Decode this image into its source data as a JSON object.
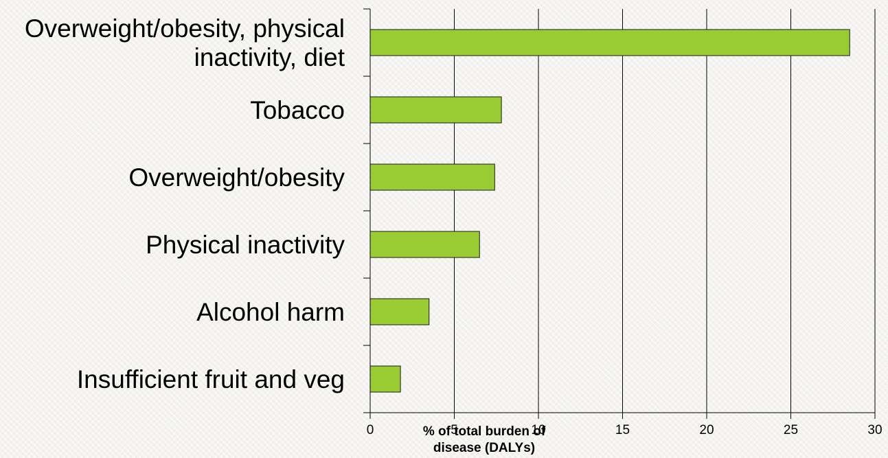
{
  "chart_data": {
    "type": "bar",
    "orientation": "horizontal",
    "categories": [
      "Overweight/obesity, physical inactivity, diet",
      "Tobacco",
      "Overweight/obesity",
      "Physical inactivity",
      "Alcohol harm",
      "Insufficient fruit and veg"
    ],
    "category_label_lines": [
      [
        "Overweight/obesity, physical",
        "inactivity, diet"
      ],
      [
        "Tobacco"
      ],
      [
        "Overweight/obesity"
      ],
      [
        "Physical inactivity"
      ],
      [
        "Alcohol harm"
      ],
      [
        "Insufficient fruit and veg"
      ]
    ],
    "values": [
      28.5,
      7.8,
      7.4,
      6.5,
      3.5,
      1.8
    ],
    "xlabel": "% of total burden of disease (DALYs)",
    "xlabel_lines": [
      "% of total burden of",
      "disease (DALYs)"
    ],
    "ylabel": "",
    "xlim": [
      0,
      30
    ],
    "xticks": [
      0,
      5,
      10,
      15,
      20,
      25,
      30
    ],
    "grid": "vertical",
    "legend": "none",
    "colors": {
      "bar_fill": "#99cc33",
      "bar_stroke": "#1a1a1a",
      "gridline": "#000000",
      "axis": "#000000"
    }
  }
}
